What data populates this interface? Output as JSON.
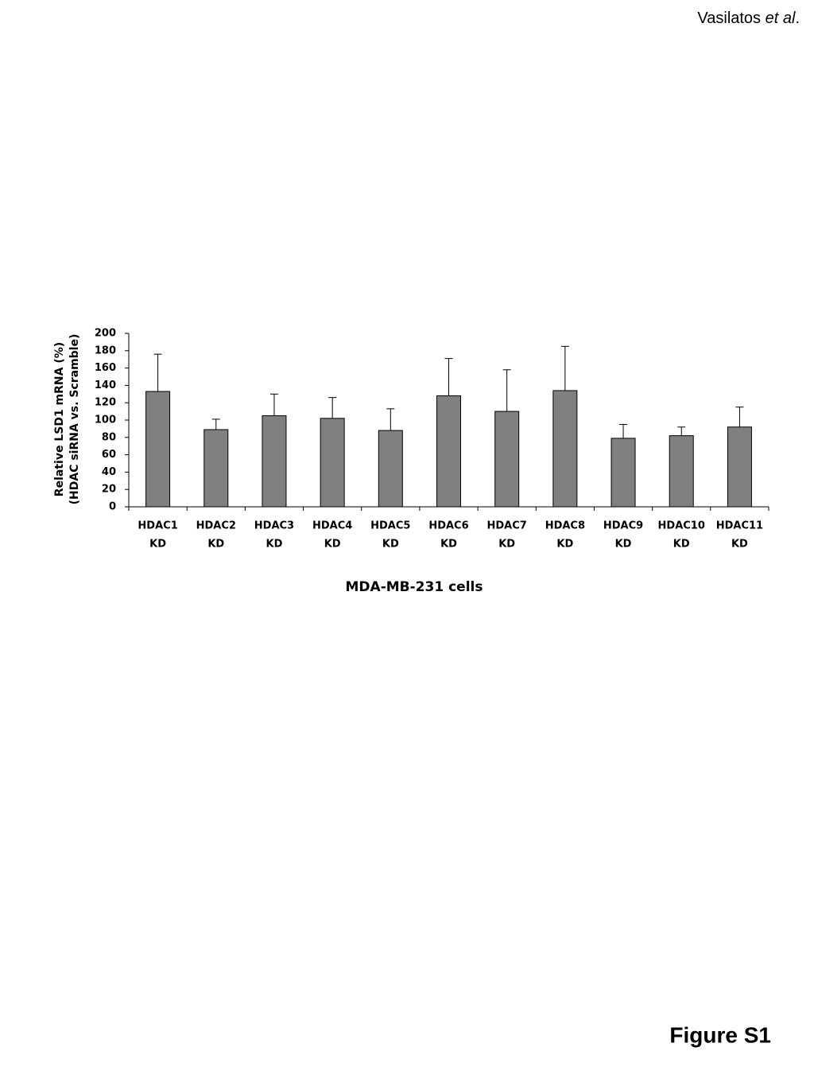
{
  "header": {
    "text": "Vasilatos",
    "italic": "et al",
    "suffix": "."
  },
  "footer": "Figure S1",
  "chart_data": {
    "type": "bar",
    "y_label": [
      "Relative LSD1 mRNA (%)",
      "(HDAC siRNA vs. Scramble)"
    ],
    "x_label": "MDA-MB-231 cells",
    "categories": [
      [
        "HDAC1",
        "KD"
      ],
      [
        "HDAC2",
        "KD"
      ],
      [
        "HDAC3",
        "KD"
      ],
      [
        "HDAC4",
        "KD"
      ],
      [
        "HDAC5",
        "KD"
      ],
      [
        "HDAC6",
        "KD"
      ],
      [
        "HDAC7",
        "KD"
      ],
      [
        "HDAC8",
        "KD"
      ],
      [
        "HDAC9",
        "KD"
      ],
      [
        "HDAC10",
        "KD"
      ],
      [
        "HDAC11",
        "KD"
      ]
    ],
    "values": [
      133,
      89,
      105,
      102,
      88,
      128,
      110,
      134,
      79,
      82,
      92
    ],
    "errors": [
      43,
      12,
      25,
      24,
      25,
      43,
      48,
      51,
      16,
      10,
      23
    ],
    "color": "#808080",
    "ylim": [
      0,
      200
    ],
    "yticks": [
      0,
      20,
      40,
      60,
      80,
      100,
      120,
      140,
      160,
      180,
      200
    ]
  }
}
